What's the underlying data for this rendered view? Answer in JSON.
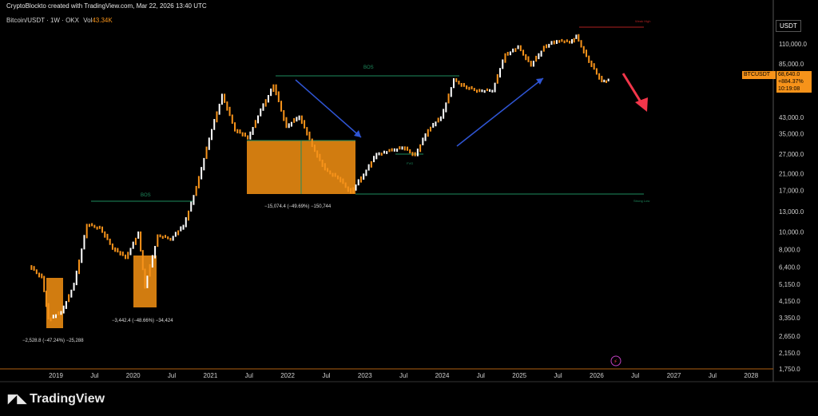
{
  "header": {
    "creator": "CryptoBlockto created with TradingView.com, Mar 22, 2026 13:40 UTC",
    "symbol_line": "Bitcoin/USDT · 1W · OKX",
    "volume_label": "Vol",
    "volume_value": "43.34K"
  },
  "price_panel": {
    "ticker": "BTCUSDT",
    "price": "68,640.0",
    "change": "+884.37%",
    "countdown": "10:19:08",
    "currency": "USDT"
  },
  "annotations": {
    "bos_top": "BOS",
    "bos_left": "BOS",
    "weak_high": "Weak High",
    "strong_low": "Strong Low",
    "fvg": "FVG",
    "drop_1": "−2,528.8 (−47.24%) −25,288",
    "drop_2": "−3,442.4 (−48.66%) −34,424",
    "drop_3": "−15,074.4 (−49.69%) −150,744"
  },
  "footer": {
    "brand": "TradingView"
  },
  "colors": {
    "candle_up": "#ffffff",
    "candle_down": "#f7931a",
    "box_fill": "#d17c10",
    "bos_line": "#1e8c5e",
    "arrow_blue": "#2f55d4",
    "arrow_red": "#f2364a",
    "weak_high": "#b02020"
  },
  "chart_data": {
    "type": "line",
    "y_scale": "log",
    "ylim": [
      1750,
      160000
    ],
    "y_ticks": [
      "110,000.0",
      "85,000.0",
      "68,640.0",
      "43,000.0",
      "35,000.0",
      "27,000.0",
      "21,000.0",
      "17,000.0",
      "13,000.0",
      "10,000.0",
      "8,000.0",
      "6,400.0",
      "5,150.0",
      "4,150.0",
      "3,350.0",
      "2,650.0",
      "2,150.0",
      "1,750.0"
    ],
    "x_ticks": [
      "2019",
      "Jul",
      "2020",
      "Jul",
      "2021",
      "Jul",
      "2022",
      "Jul",
      "2023",
      "Jul",
      "2024",
      "Jul",
      "2025",
      "Jul",
      "2026",
      "Jul",
      "2027",
      "Jul",
      "2028"
    ],
    "series": [
      {
        "x": [
          "2018-09",
          "2018-11",
          "2018-12",
          "2019-02",
          "2019-04",
          "2019-06",
          "2019-08",
          "2019-10",
          "2019-12",
          "2020-02",
          "2020-03",
          "2020-05",
          "2020-07",
          "2020-09",
          "2020-11",
          "2021-01",
          "2021-03",
          "2021-05",
          "2021-07",
          "2021-09",
          "2021-11",
          "2022-01",
          "2022-03",
          "2022-05",
          "2022-07",
          "2022-09",
          "2022-11",
          "2023-01",
          "2023-03",
          "2023-05",
          "2023-07",
          "2023-09",
          "2023-11",
          "2024-01",
          "2024-03",
          "2024-05",
          "2024-07",
          "2024-09",
          "2024-11",
          "2025-01",
          "2025-03",
          "2025-05",
          "2025-07",
          "2025-09",
          "2025-10",
          "2025-12",
          "2026-02",
          "2026-03"
        ],
        "y": [
          6500,
          5600,
          3300,
          3600,
          5100,
          11000,
          10500,
          8200,
          7200,
          9800,
          5000,
          9500,
          9200,
          10800,
          17500,
          33000,
          57000,
          37000,
          33000,
          47000,
          65000,
          38000,
          44000,
          30000,
          22000,
          20000,
          16500,
          21000,
          27000,
          28000,
          29500,
          26500,
          37000,
          43000,
          69000,
          63000,
          60000,
          61000,
          96000,
          105000,
          84000,
          105000,
          115000,
          112000,
          121000,
          88000,
          68000,
          68640
        ]
      }
    ]
  }
}
